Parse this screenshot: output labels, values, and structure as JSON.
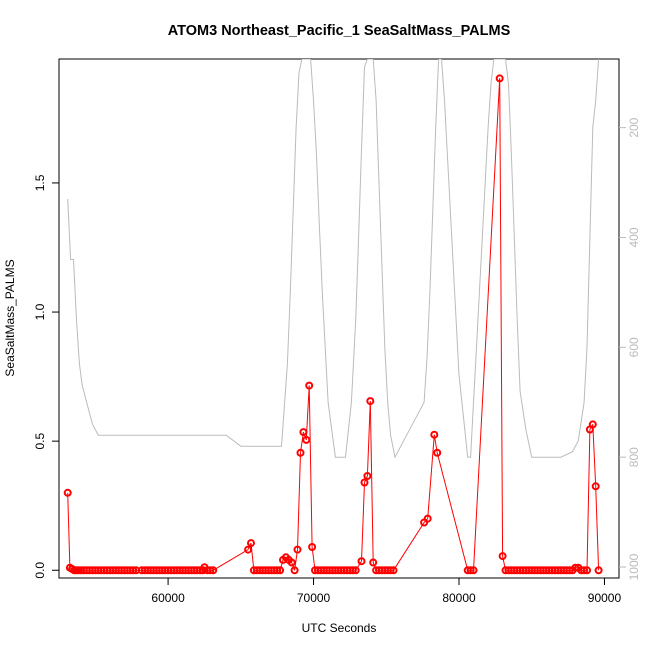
{
  "chart_data": {
    "type": "scatter",
    "title": "ATOM3 Northeast_Pacific_1 SeaSaltMass_PALMS",
    "xlabel": "UTC Seconds",
    "ylabel": "SeaSaltMass_PALMS",
    "xlim": [
      52500,
      91000
    ],
    "ylim": [
      -0.03,
      1.98
    ],
    "x_ticks": [
      60000,
      70000,
      80000,
      90000
    ],
    "x_tick_labels": [
      "60000",
      "70000",
      "80000",
      "90000"
    ],
    "y_ticks": [
      0.0,
      0.5,
      1.0,
      1.5
    ],
    "y_tick_labels": [
      "0.0",
      "0.5",
      "1.0",
      "1.5"
    ],
    "y2_ticks": [
      200,
      400,
      600,
      800,
      1000
    ],
    "y2_tick_labels": [
      "200",
      "400",
      "600",
      "800",
      "1000"
    ],
    "y2lim": [
      1020,
      75
    ],
    "series": [
      {
        "role": "data",
        "color": "#ff0000",
        "marker": "circle-open",
        "x": [
          53100,
          53250,
          53400,
          53550,
          53700,
          53850,
          54000,
          54200,
          54400,
          54600,
          54800,
          55000,
          55200,
          55400,
          55600,
          55800,
          56000,
          56200,
          56400,
          56600,
          56800,
          57000,
          57200,
          57400,
          57600,
          57800,
          58200,
          58400,
          58600,
          58800,
          59000,
          59200,
          59400,
          59600,
          59800,
          60000,
          60200,
          60400,
          60600,
          60800,
          61000,
          61200,
          61400,
          61600,
          61800,
          62000,
          62200,
          62400,
          62500,
          62700,
          62900,
          63100,
          65500,
          65700,
          65900,
          66100,
          66300,
          66500,
          66700,
          66900,
          67100,
          67300,
          67500,
          67700,
          67900,
          68100,
          68300,
          68500,
          68700,
          68900,
          69100,
          69300,
          69500,
          69700,
          69900,
          70100,
          70300,
          70500,
          70700,
          70900,
          71100,
          71300,
          71500,
          71700,
          71900,
          72100,
          72300,
          72500,
          72700,
          72900,
          73300,
          73500,
          73700,
          73900,
          74100,
          74300,
          74500,
          74700,
          74900,
          75100,
          75300,
          75500,
          77600,
          77850,
          78300,
          78500,
          80600,
          80800,
          81000,
          82800,
          83000,
          83200,
          83400,
          83600,
          83800,
          84000,
          84200,
          84400,
          84600,
          84800,
          85000,
          85200,
          85400,
          85600,
          85800,
          86000,
          86200,
          86400,
          86600,
          86800,
          87000,
          87200,
          87400,
          87600,
          87800,
          88000,
          88200,
          88400,
          88600,
          88800,
          89000,
          89200,
          89400,
          89600
        ],
        "y": [
          0.3,
          0.01,
          0.005,
          0.0,
          0.0,
          0.0,
          0.0,
          0.0,
          0.0,
          0.0,
          0.0,
          0.0,
          0.0,
          0.0,
          0.0,
          0.0,
          0.0,
          0.0,
          0.0,
          0.0,
          0.0,
          0.0,
          0.0,
          0.0,
          0.0,
          0.0,
          0.0,
          0.0,
          0.0,
          0.0,
          0.0,
          0.0,
          0.0,
          0.0,
          0.0,
          0.0,
          0.0,
          0.0,
          0.0,
          0.0,
          0.0,
          0.0,
          0.0,
          0.0,
          0.0,
          0.0,
          0.0,
          0.0,
          0.012,
          0.0,
          0.0,
          0.0,
          0.08,
          0.105,
          0.0,
          0.0,
          0.0,
          0.0,
          0.0,
          0.0,
          0.0,
          0.0,
          0.0,
          0.0,
          0.04,
          0.05,
          0.04,
          0.03,
          0.0,
          0.08,
          0.455,
          0.535,
          0.505,
          0.715,
          0.09,
          0.0,
          0.0,
          0.0,
          0.0,
          0.0,
          0.0,
          0.0,
          0.0,
          0.0,
          0.0,
          0.0,
          0.0,
          0.0,
          0.0,
          0.0,
          0.035,
          0.34,
          0.365,
          0.655,
          0.03,
          0.0,
          0.0,
          0.0,
          0.0,
          0.0,
          0.0,
          0.0,
          0.185,
          0.2,
          0.525,
          0.455,
          0.0,
          0.0,
          0.0,
          1.905,
          0.055,
          0.0,
          0.0,
          0.0,
          0.0,
          0.0,
          0.0,
          0.0,
          0.0,
          0.0,
          0.0,
          0.0,
          0.0,
          0.0,
          0.0,
          0.0,
          0.0,
          0.0,
          0.0,
          0.0,
          0.0,
          0.0,
          0.0,
          0.0,
          0.0,
          0.01,
          0.01,
          0.0,
          0.0,
          0.0,
          0.545,
          0.565,
          0.325,
          0.0
        ]
      },
      {
        "role": "altitude",
        "color": "#bbbbbb",
        "axis": "right",
        "x": [
          53100,
          53300,
          53500,
          53700,
          53900,
          54100,
          54400,
          54800,
          55200,
          56000,
          58000,
          60000,
          62000,
          63000,
          64000,
          65000,
          65500,
          66000,
          67000,
          67800,
          68200,
          68400,
          68600,
          68800,
          69000,
          69200,
          69400,
          69600,
          69800,
          70000,
          70200,
          70400,
          70600,
          70800,
          71000,
          71200,
          71500,
          71800,
          72200,
          72600,
          72900,
          73100,
          73300,
          73500,
          73700,
          73900,
          74100,
          74300,
          74500,
          74700,
          74900,
          75100,
          75300,
          75600,
          76000,
          76400,
          76800,
          77200,
          77600,
          77800,
          78000,
          78200,
          78400,
          78600,
          78800,
          79000,
          79200,
          79400,
          79600,
          79800,
          80000,
          80200,
          80400,
          80600,
          80800,
          81000,
          81200,
          81400,
          81600,
          81800,
          82000,
          82200,
          82400,
          82600,
          82800,
          83000,
          83200,
          83400,
          83600,
          83800,
          84000,
          84200,
          84600,
          85000,
          86000,
          87000,
          87800,
          88200,
          88600,
          88800,
          89000,
          89200,
          89400,
          89600
        ],
        "y": [
          330,
          440,
          440,
          550,
          630,
          670,
          700,
          740,
          760,
          760,
          760,
          760,
          760,
          760,
          760,
          780,
          780,
          780,
          780,
          780,
          630,
          500,
          350,
          200,
          100,
          75,
          75,
          75,
          75,
          150,
          250,
          380,
          500,
          600,
          700,
          740,
          800,
          800,
          800,
          700,
          550,
          400,
          240,
          90,
          75,
          75,
          75,
          150,
          300,
          450,
          600,
          700,
          760,
          800,
          780,
          760,
          740,
          720,
          700,
          620,
          500,
          350,
          200,
          75,
          75,
          150,
          250,
          350,
          450,
          550,
          650,
          700,
          750,
          800,
          800,
          700,
          600,
          500,
          400,
          300,
          200,
          120,
          75,
          75,
          75,
          75,
          75,
          120,
          250,
          400,
          550,
          680,
          750,
          800,
          800,
          800,
          790,
          770,
          700,
          600,
          400,
          200,
          150,
          75
        ]
      }
    ]
  }
}
